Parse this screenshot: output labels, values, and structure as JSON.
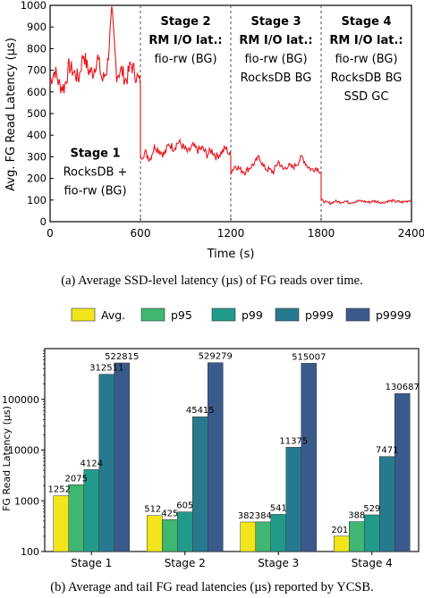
{
  "chart_data": [
    {
      "type": "line",
      "xlabel": "Time (s)",
      "ylabel": "Avg. FG Read Latency (µs)",
      "xlim": [
        0,
        2400
      ],
      "ylim": [
        0,
        1000
      ],
      "x_ticks": [
        "0",
        "600",
        "1200",
        "1800",
        "2400"
      ],
      "y_ticks": [
        "0",
        "100",
        "200",
        "300",
        "400",
        "500",
        "600",
        "700",
        "800",
        "900",
        "1000"
      ],
      "grid": false,
      "color": "#e8141a",
      "stage_dividers": [
        600,
        1200,
        1800
      ],
      "stages": [
        {
          "lines": [
            "Stage 1",
            "RocksDB +",
            "fio-rw (BG)"
          ],
          "x": 300,
          "y": 300
        },
        {
          "lines": [
            "Stage 2",
            "RM I/O lat.:",
            "fio-rw (BG)"
          ],
          "x": 900,
          "y": 910
        },
        {
          "lines": [
            "Stage 3",
            "RM I/O lat.:",
            "fio-rw (BG)",
            "RocksDB BG"
          ],
          "x": 1500,
          "y": 910
        },
        {
          "lines": [
            "Stage 4",
            "RM I/O lat.:",
            "fio-rw (BG)",
            "RocksDB BG",
            "SSD GC"
          ],
          "x": 2100,
          "y": 910
        }
      ],
      "segments": [
        {
          "x_start": 0,
          "x_end": 600,
          "mean": 650,
          "amp": 40,
          "values": [
            650,
            700,
            630,
            620,
            720,
            690,
            660,
            780,
            700,
            690,
            760,
            650,
            710,
            970,
            680,
            700,
            650,
            730,
            680,
            640
          ]
        },
        {
          "x_start": 600,
          "x_end": 1200,
          "mean": 330,
          "amp": 20,
          "values": [
            300,
            320,
            290,
            350,
            330,
            310,
            360,
            340,
            370,
            345,
            320,
            350,
            330,
            340,
            310,
            330,
            300,
            320,
            340,
            300
          ]
        },
        {
          "x_start": 1200,
          "x_end": 1800,
          "mean": 250,
          "amp": 15,
          "values": [
            230,
            260,
            240,
            230,
            250,
            270,
            300,
            250,
            240,
            230,
            280,
            240,
            260,
            250,
            270,
            300,
            260,
            240,
            250,
            230
          ]
        },
        {
          "x_start": 1800,
          "x_end": 2400,
          "mean": 95,
          "amp": 6,
          "values": [
            100,
            90,
            85,
            95,
            90,
            95,
            88,
            92,
            96,
            94,
            90,
            95,
            92,
            88,
            95,
            96,
            93,
            90,
            95,
            100
          ]
        }
      ],
      "caption": "(a)  Average SSD-level latency (µs) of FG reads over time."
    },
    {
      "type": "bar",
      "scale": "log",
      "ylabel": "FG Read Latency (µs)",
      "ylim": [
        100,
        1000000
      ],
      "y_ticks": [
        "100",
        "1000",
        "10000",
        "100000"
      ],
      "categories": [
        "Stage 1",
        "Stage 2",
        "Stage 3",
        "Stage 4"
      ],
      "series": [
        {
          "name": "Avg.",
          "color": "#f2e51b",
          "values": [
            1252,
            512,
            382,
            201
          ]
        },
        {
          "name": "p95",
          "color": "#3fb671",
          "values": [
            2075,
            425,
            384,
            388
          ]
        },
        {
          "name": "p99",
          "color": "#219a8a",
          "values": [
            4124,
            605,
            541,
            529
          ]
        },
        {
          "name": "p999",
          "color": "#277a8e",
          "values": [
            312511,
            45415,
            11375,
            7471
          ]
        },
        {
          "name": "p9999",
          "color": "#3a5a8c",
          "values": [
            522815,
            529279,
            515007,
            130687
          ]
        }
      ],
      "legend": "top",
      "caption": "(b)  Average and tail FG read latencies (µs) reported by YCSB."
    }
  ]
}
